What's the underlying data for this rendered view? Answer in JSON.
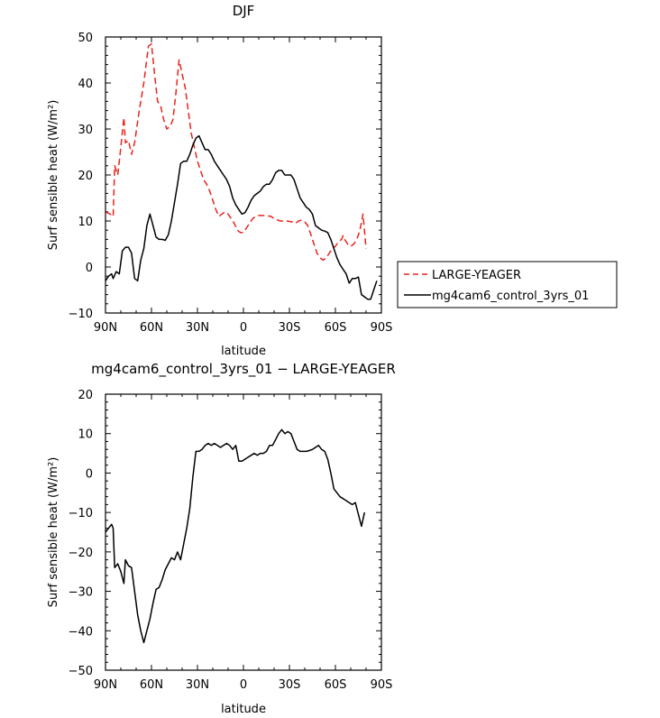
{
  "chart_data": [
    {
      "type": "line",
      "title": "DJF",
      "xlabel": "latitude",
      "ylabel": "Surf sensible heat (W/m²)",
      "xlim": [
        90,
        -90
      ],
      "ylim": [
        -10,
        50
      ],
      "xticks": [
        {
          "v": 90,
          "label": "90N"
        },
        {
          "v": 60,
          "label": "60N"
        },
        {
          "v": 30,
          "label": "30N"
        },
        {
          "v": 0,
          "label": "0"
        },
        {
          "v": -30,
          "label": "30S"
        },
        {
          "v": -60,
          "label": "60S"
        },
        {
          "v": -90,
          "label": "90S"
        }
      ],
      "yticks": [
        -10,
        0,
        10,
        20,
        30,
        40,
        50
      ],
      "legend_position": "right",
      "series": [
        {
          "name": "LARGE-YEAGER",
          "color": "#e8241c",
          "dash": "dashed",
          "points": [
            [
              90,
              12
            ],
            [
              87,
              11.5
            ],
            [
              85,
              11
            ],
            [
              84,
              22
            ],
            [
              82,
              20
            ],
            [
              80,
              26
            ],
            [
              78,
              32.5
            ],
            [
              77,
              27
            ],
            [
              75,
              27.5
            ],
            [
              73,
              24.5
            ],
            [
              71,
              27
            ],
            [
              68,
              34
            ],
            [
              65,
              40
            ],
            [
              62,
              48
            ],
            [
              60,
              48.5
            ],
            [
              58,
              42
            ],
            [
              56,
              36
            ],
            [
              54,
              35
            ],
            [
              52,
              32
            ],
            [
              50,
              30
            ],
            [
              48,
              30.5
            ],
            [
              46,
              32
            ],
            [
              44,
              38
            ],
            [
              42,
              45
            ],
            [
              40,
              42
            ],
            [
              38,
              39
            ],
            [
              36,
              34
            ],
            [
              34,
              29
            ],
            [
              32,
              26
            ],
            [
              30,
              23
            ],
            [
              28,
              21
            ],
            [
              26,
              19
            ],
            [
              24,
              18
            ],
            [
              22,
              16.5
            ],
            [
              20,
              14.5
            ],
            [
              18,
              12.5
            ],
            [
              16,
              11
            ],
            [
              14,
              11.5
            ],
            [
              12,
              12
            ],
            [
              10,
              11.5
            ],
            [
              8,
              10.5
            ],
            [
              6,
              9.5
            ],
            [
              4,
              8
            ],
            [
              2,
              7.5
            ],
            [
              0,
              7.5
            ],
            [
              -2,
              8.5
            ],
            [
              -4,
              9.5
            ],
            [
              -6,
              10.5
            ],
            [
              -8,
              11
            ],
            [
              -10,
              11.2
            ],
            [
              -14,
              11.2
            ],
            [
              -18,
              11
            ],
            [
              -20,
              10.5
            ],
            [
              -24,
              10
            ],
            [
              -28,
              10
            ],
            [
              -32,
              9.8
            ],
            [
              -34,
              9.5
            ],
            [
              -36,
              10
            ],
            [
              -38,
              10.2
            ],
            [
              -40,
              9.8
            ],
            [
              -42,
              9
            ],
            [
              -44,
              7
            ],
            [
              -46,
              5
            ],
            [
              -48,
              3
            ],
            [
              -50,
              2
            ],
            [
              -52,
              1.5
            ],
            [
              -54,
              2
            ],
            [
              -56,
              3
            ],
            [
              -58,
              4
            ],
            [
              -60,
              4.5
            ],
            [
              -62,
              5.5
            ],
            [
              -64,
              6
            ],
            [
              -65,
              6.8
            ],
            [
              -66,
              6
            ],
            [
              -68,
              5
            ],
            [
              -70,
              4.5
            ],
            [
              -72,
              5
            ],
            [
              -74,
              6
            ],
            [
              -76,
              8
            ],
            [
              -78,
              11.5
            ],
            [
              -80,
              4
            ]
          ]
        },
        {
          "name": "mg4cam6_control_3yrs_01",
          "color": "#000000",
          "dash": "solid",
          "points": [
            [
              90,
              -3
            ],
            [
              88,
              -2
            ],
            [
              86,
              -1.5
            ],
            [
              85,
              -2.5
            ],
            [
              83,
              -1
            ],
            [
              81,
              -1.5
            ],
            [
              79,
              3.5
            ],
            [
              77,
              4.3
            ],
            [
              75,
              4.3
            ],
            [
              73,
              3
            ],
            [
              71,
              -2.5
            ],
            [
              69,
              -3
            ],
            [
              67,
              1.5
            ],
            [
              65,
              4
            ],
            [
              63,
              9
            ],
            [
              61,
              11.5
            ],
            [
              59,
              9
            ],
            [
              57,
              6.5
            ],
            [
              55,
              6
            ],
            [
              53,
              6
            ],
            [
              51,
              5.8
            ],
            [
              49,
              7
            ],
            [
              47,
              10
            ],
            [
              45,
              14
            ],
            [
              43,
              18
            ],
            [
              41,
              22.5
            ],
            [
              39,
              23
            ],
            [
              37,
              23
            ],
            [
              35,
              24.5
            ],
            [
              33,
              26.5
            ],
            [
              31,
              28
            ],
            [
              29,
              28.5
            ],
            [
              27,
              27
            ],
            [
              25,
              25.5
            ],
            [
              23,
              25.5
            ],
            [
              21,
              24.5
            ],
            [
              19,
              23
            ],
            [
              17,
              22
            ],
            [
              15,
              21
            ],
            [
              13,
              20
            ],
            [
              11,
              19
            ],
            [
              9,
              17.5
            ],
            [
              7,
              15
            ],
            [
              5,
              13.5
            ],
            [
              3,
              12.5
            ],
            [
              1,
              11.5
            ],
            [
              -1,
              11.8
            ],
            [
              -3,
              13
            ],
            [
              -5,
              14.5
            ],
            [
              -7,
              15.5
            ],
            [
              -9,
              16
            ],
            [
              -11,
              16.5
            ],
            [
              -13,
              17.5
            ],
            [
              -15,
              18
            ],
            [
              -17,
              18
            ],
            [
              -19,
              19
            ],
            [
              -21,
              20.5
            ],
            [
              -23,
              21
            ],
            [
              -25,
              21
            ],
            [
              -27,
              20
            ],
            [
              -29,
              20
            ],
            [
              -31,
              20
            ],
            [
              -33,
              19
            ],
            [
              -35,
              17
            ],
            [
              -37,
              15
            ],
            [
              -39,
              14
            ],
            [
              -41,
              13
            ],
            [
              -43,
              12.5
            ],
            [
              -45,
              11.5
            ],
            [
              -47,
              9
            ],
            [
              -49,
              8.5
            ],
            [
              -51,
              8
            ],
            [
              -53,
              7.8
            ],
            [
              -55,
              7.5
            ],
            [
              -57,
              6
            ],
            [
              -59,
              4
            ],
            [
              -61,
              2
            ],
            [
              -63,
              0.5
            ],
            [
              -65,
              -0.5
            ],
            [
              -67,
              -1.5
            ],
            [
              -69,
              -3.5
            ],
            [
              -71,
              -2.5
            ],
            [
              -73,
              -2.5
            ],
            [
              -75,
              -2.2
            ],
            [
              -77,
              -6
            ],
            [
              -79,
              -6.5
            ],
            [
              -81,
              -7
            ],
            [
              -83,
              -7
            ],
            [
              -85,
              -5
            ],
            [
              -87,
              -3
            ]
          ]
        }
      ]
    },
    {
      "type": "line",
      "title": "mg4cam6_control_3yrs_01 − LARGE-YEAGER",
      "xlabel": "latitude",
      "ylabel": "Surf sensible heat (W/m²)",
      "xlim": [
        90,
        -90
      ],
      "ylim": [
        -50,
        20
      ],
      "xticks": [
        {
          "v": 90,
          "label": "90N"
        },
        {
          "v": 60,
          "label": "60N"
        },
        {
          "v": 30,
          "label": "30N"
        },
        {
          "v": 0,
          "label": "0"
        },
        {
          "v": -30,
          "label": "30S"
        },
        {
          "v": -60,
          "label": "60S"
        },
        {
          "v": -90,
          "label": "90S"
        }
      ],
      "yticks": [
        -50,
        -40,
        -30,
        -20,
        -10,
        0,
        10,
        20
      ],
      "series": [
        {
          "color": "#000000",
          "dash": "solid",
          "points": [
            [
              90,
              -15
            ],
            [
              88,
              -14
            ],
            [
              86,
              -13
            ],
            [
              85,
              -14
            ],
            [
              84,
              -24
            ],
            [
              82,
              -23
            ],
            [
              80,
              -25
            ],
            [
              78,
              -28
            ],
            [
              77,
              -22
            ],
            [
              75,
              -23.5
            ],
            [
              73,
              -24
            ],
            [
              71,
              -30
            ],
            [
              69,
              -36
            ],
            [
              67,
              -40
            ],
            [
              65,
              -43
            ],
            [
              63,
              -40
            ],
            [
              61,
              -37
            ],
            [
              59,
              -33
            ],
            [
              57,
              -29.5
            ],
            [
              55,
              -29
            ],
            [
              53,
              -27
            ],
            [
              51,
              -24.5
            ],
            [
              49,
              -23
            ],
            [
              47,
              -21.5
            ],
            [
              45,
              -22
            ],
            [
              43,
              -20
            ],
            [
              41,
              -22
            ],
            [
              39,
              -18
            ],
            [
              37,
              -14
            ],
            [
              35,
              -9
            ],
            [
              33,
              -1
            ],
            [
              31,
              5.5
            ],
            [
              29,
              5.5
            ],
            [
              27,
              6
            ],
            [
              25,
              7
            ],
            [
              23,
              7.5
            ],
            [
              21,
              7
            ],
            [
              19,
              7.5
            ],
            [
              17,
              7
            ],
            [
              15,
              6.5
            ],
            [
              13,
              7
            ],
            [
              11,
              7.5
            ],
            [
              9,
              7
            ],
            [
              7,
              6
            ],
            [
              5,
              7
            ],
            [
              3,
              3
            ],
            [
              1,
              3
            ],
            [
              -1,
              3.5
            ],
            [
              -3,
              4
            ],
            [
              -5,
              4.5
            ],
            [
              -7,
              5
            ],
            [
              -9,
              4.5
            ],
            [
              -11,
              5
            ],
            [
              -13,
              5
            ],
            [
              -15,
              5.5
            ],
            [
              -17,
              7
            ],
            [
              -19,
              7
            ],
            [
              -21,
              8.5
            ],
            [
              -23,
              10
            ],
            [
              -25,
              11
            ],
            [
              -27,
              10
            ],
            [
              -29,
              10.5
            ],
            [
              -31,
              10
            ],
            [
              -33,
              8
            ],
            [
              -35,
              6
            ],
            [
              -37,
              5.5
            ],
            [
              -39,
              5.5
            ],
            [
              -41,
              5.5
            ],
            [
              -43,
              5.7
            ],
            [
              -45,
              6
            ],
            [
              -47,
              6.5
            ],
            [
              -49,
              7
            ],
            [
              -51,
              6
            ],
            [
              -53,
              5.5
            ],
            [
              -55,
              3.5
            ],
            [
              -57,
              0
            ],
            [
              -59,
              -4
            ],
            [
              -61,
              -5
            ],
            [
              -63,
              -6
            ],
            [
              -65,
              -6.5
            ],
            [
              -67,
              -7
            ],
            [
              -69,
              -7.5
            ],
            [
              -71,
              -8
            ],
            [
              -73,
              -7.5
            ],
            [
              -75,
              -10.5
            ],
            [
              -77,
              -13.5
            ],
            [
              -79,
              -10
            ]
          ]
        }
      ]
    }
  ]
}
